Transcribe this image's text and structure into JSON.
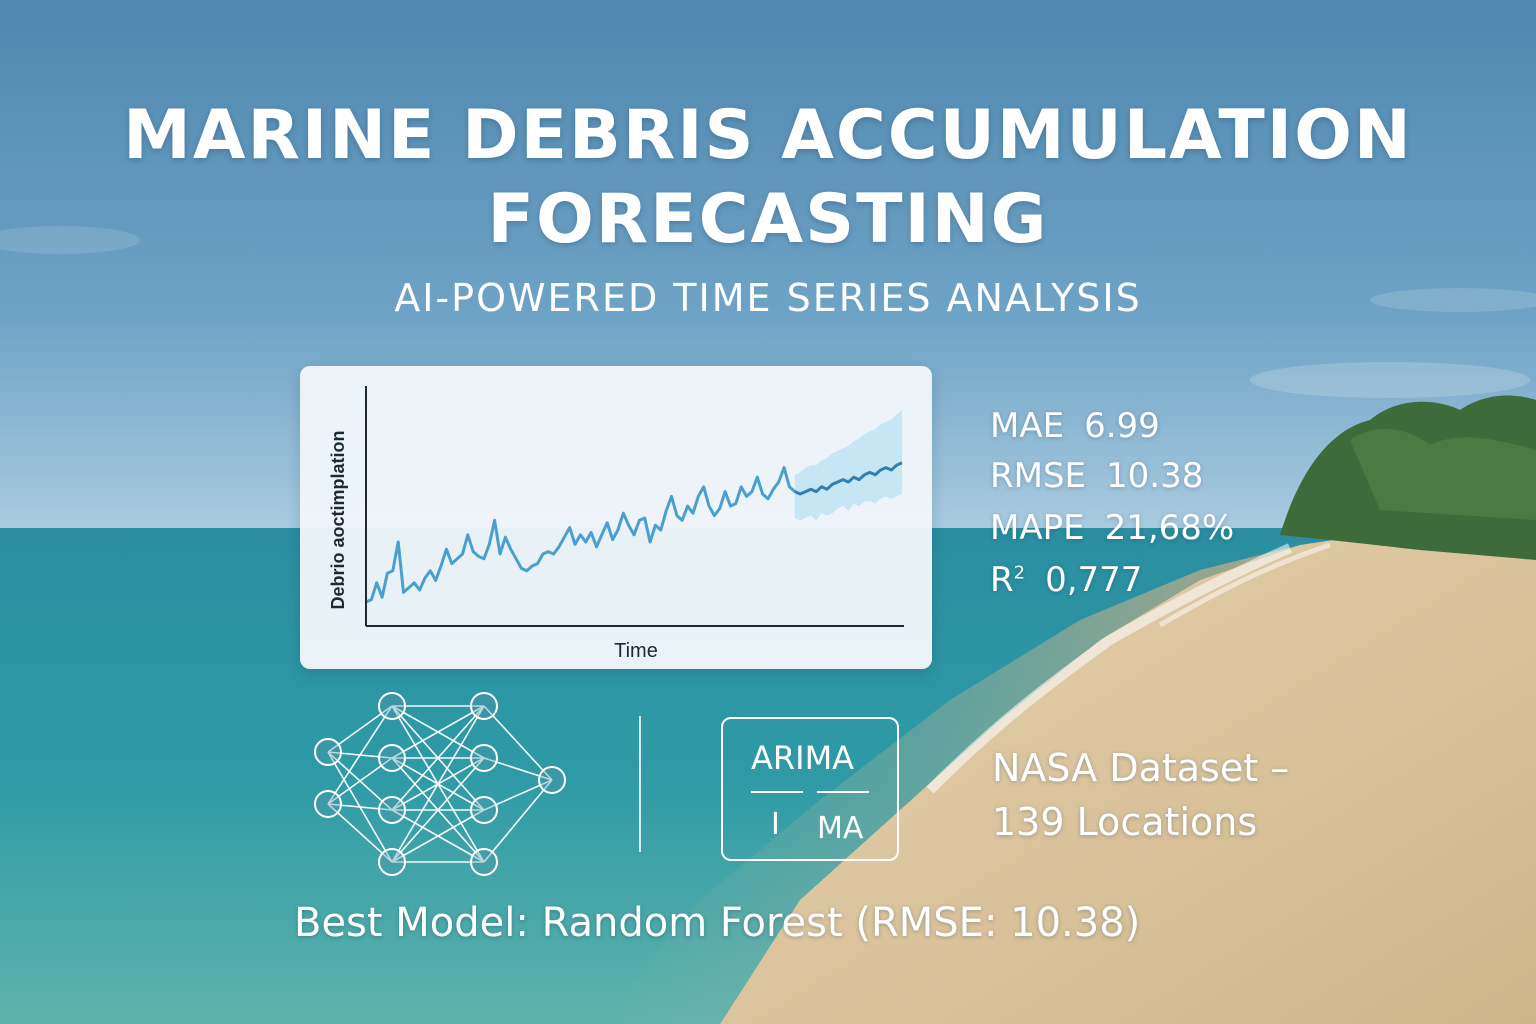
{
  "title_line1": "MARINE DEBRIS ACCUMULATION",
  "title_line2": "FORECASTING",
  "subtitle": "AI-POWERED TIME SERIES ANALYSIS",
  "chart_data": {
    "type": "line",
    "xlabel": "Time",
    "ylabel": "Debrio aoctimplation",
    "series": [
      {
        "values": [
          10,
          11,
          18,
          12,
          22,
          23,
          35,
          14,
          16,
          18,
          15,
          20,
          23,
          19,
          25,
          32,
          26,
          28,
          30,
          38,
          31,
          29,
          28,
          34,
          44,
          30,
          37,
          32,
          28,
          24,
          23,
          25,
          26,
          30,
          31,
          30,
          33,
          37,
          41,
          34,
          38,
          35,
          39,
          33,
          38,
          43,
          36,
          40,
          47,
          42,
          38,
          44,
          45,
          35,
          42,
          40,
          48,
          54,
          46,
          44,
          50,
          47,
          54,
          58,
          50,
          46,
          49,
          56,
          50,
          51,
          58,
          54,
          56,
          62,
          55,
          53,
          57,
          60,
          66,
          58,
          56
        ]
      },
      {
        "values": [
          56,
          55,
          56,
          57,
          56,
          58,
          57,
          59,
          60,
          61,
          60,
          62,
          61,
          63,
          64,
          63,
          65,
          66,
          65,
          67,
          68
        ]
      }
    ],
    "forecast_band": {
      "lower": [
        45,
        44,
        45,
        46,
        44,
        47,
        46,
        47,
        49,
        50,
        48,
        51,
        50,
        52,
        52,
        51,
        53,
        54,
        53,
        54,
        55
      ],
      "upper": [
        63,
        64,
        66,
        67,
        67,
        69,
        70,
        72,
        73,
        74,
        75,
        77,
        78,
        80,
        81,
        82,
        84,
        85,
        86,
        88,
        90
      ]
    },
    "ylim": [
      0,
      100
    ],
    "grid": false,
    "colors": {
      "history": "#4a9fd0",
      "forecast": "#2f7fb0",
      "band": "#bfe3f2"
    }
  },
  "metrics": [
    {
      "label": "MAE",
      "value": "6.99"
    },
    {
      "label": "RMSE",
      "value": "10.38"
    },
    {
      "label": "MAPE",
      "value": "21,68%"
    },
    {
      "label": "R",
      "sup": "2",
      "value": "0,777"
    }
  ],
  "model_icons": [
    "neural-network-icon",
    "arima-icon"
  ],
  "arima": {
    "top": "ARIMA",
    "left": "I",
    "right": "MA"
  },
  "dataset_line1": "NASA Dataset –",
  "dataset_line2": "139 Locations",
  "best_model": "Best Model: Random Forest (RMSE: 10.38)"
}
